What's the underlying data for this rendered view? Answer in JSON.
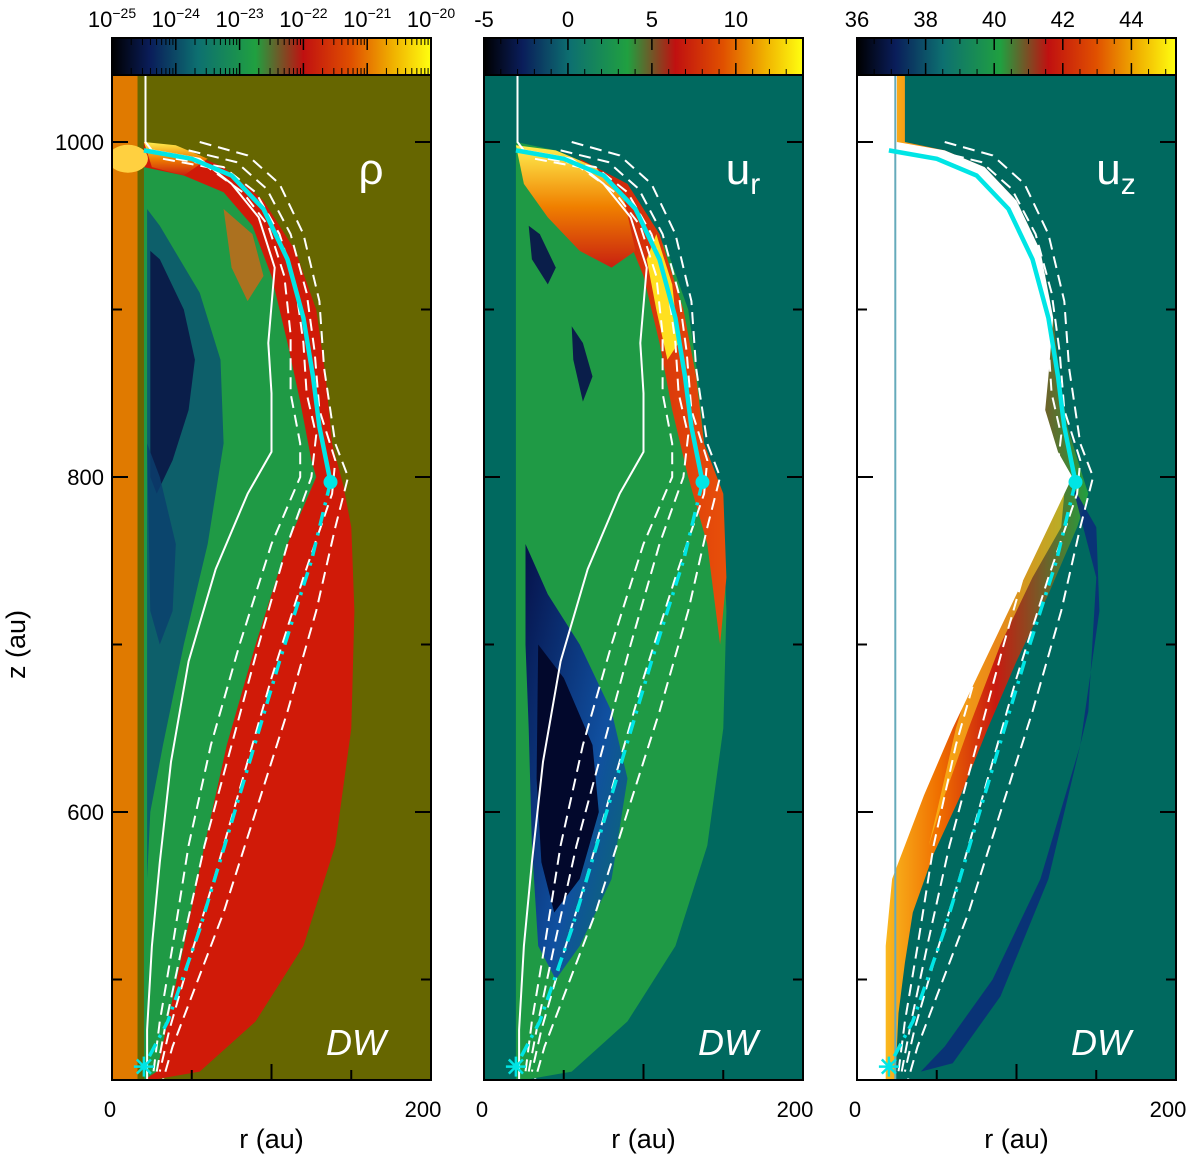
{
  "chart_data": [
    {
      "type": "heatmap",
      "quantity": "ρ",
      "annotation": "DW",
      "colorbar": {
        "scale": "log",
        "ticks": [
          {
            "base": "10",
            "exp": "−25"
          },
          {
            "base": "10",
            "exp": "−24"
          },
          {
            "base": "10",
            "exp": "−23"
          },
          {
            "base": "10",
            "exp": "−22"
          },
          {
            "base": "10",
            "exp": "−21"
          },
          {
            "base": "10",
            "exp": "−20"
          }
        ]
      },
      "xlabel": "r (au)",
      "ylabel": "z (au)",
      "xlim": [
        0,
        200
      ],
      "ylim": [
        440,
        1040
      ],
      "xticks": [
        "0",
        "200"
      ],
      "yticks": [
        "600",
        "800",
        "1000"
      ],
      "markers": {
        "star": [
          20,
          448
        ],
        "dot": [
          137,
          797
        ]
      }
    },
    {
      "type": "heatmap",
      "quantity": "u",
      "quantity_sub": "r",
      "annotation": "DW",
      "colorbar": {
        "ticks": [
          "-5",
          "0",
          "5",
          "10"
        ],
        "range": [
          -5,
          14
        ]
      },
      "xlabel": "r (au)",
      "xlim": [
        0,
        200
      ],
      "ylim": [
        440,
        1040
      ],
      "xticks": [
        "0",
        "200"
      ],
      "markers": {
        "star": [
          20,
          448
        ],
        "dot": [
          137,
          797
        ]
      }
    },
    {
      "type": "heatmap",
      "quantity": "u",
      "quantity_sub": "z",
      "annotation": "DW",
      "colorbar": {
        "ticks": [
          "36",
          "38",
          "40",
          "42",
          "44"
        ],
        "range": [
          36,
          45.3
        ]
      },
      "xlabel": "r (au)",
      "xlim": [
        0,
        200
      ],
      "ylim": [
        440,
        1040
      ],
      "xticks": [
        "0",
        "200"
      ],
      "markers": {
        "star": [
          20,
          448
        ],
        "dot": [
          137,
          797
        ]
      }
    }
  ],
  "colors": {
    "cyan": "#00e5e5",
    "bg_rho": "#666600",
    "bg_ur": "#00695f",
    "bg_uz": "#00695f",
    "axis_orange": "#e07a00"
  }
}
